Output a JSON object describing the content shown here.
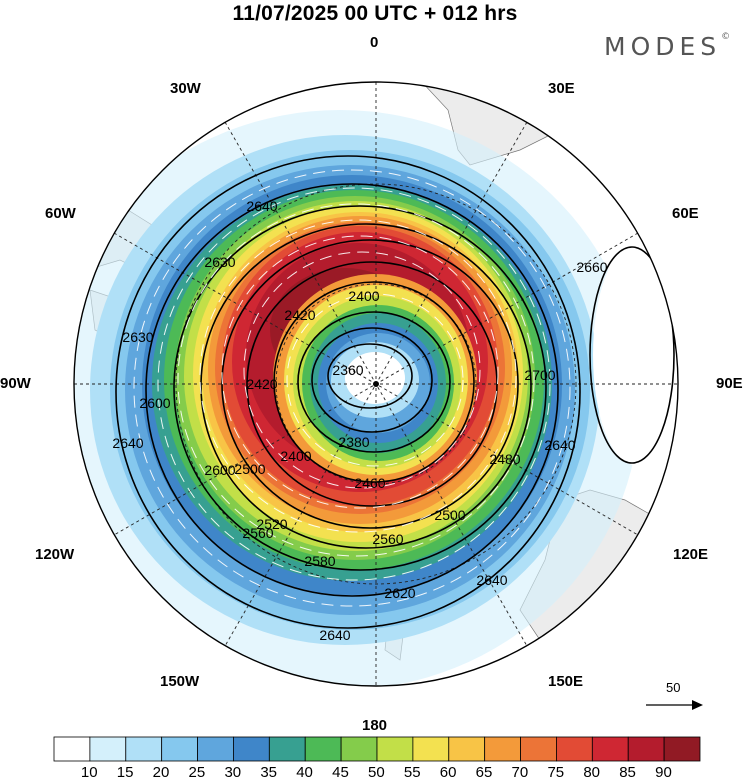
{
  "title": "11/07/2025  00 UTC  + 012 hrs",
  "brand": "MODES",
  "brand_mark": "©",
  "longitude_labels": {
    "n": "0",
    "e30": "30E",
    "e60": "60E",
    "e90": "90E",
    "e120": "120E",
    "e150": "150E",
    "s": "180",
    "w150": "150W",
    "w120": "120W",
    "w90": "90W",
    "w60": "60W",
    "w30": "30W"
  },
  "vector_reference": {
    "label": "50",
    "icon": "arrow-right-icon"
  },
  "contour_labels": [
    "2360",
    "2380",
    "2400",
    "2420",
    "2460",
    "2480",
    "2500",
    "2520",
    "2560",
    "2580",
    "2600",
    "2620",
    "2630",
    "2640",
    "2660",
    "2700"
  ],
  "colorbar": {
    "labels": [
      "10",
      "15",
      "20",
      "25",
      "30",
      "35",
      "40",
      "45",
      "50",
      "55",
      "60",
      "65",
      "70",
      "75",
      "80",
      "85",
      "90"
    ],
    "colors": [
      "#ffffff",
      "#d4f0fb",
      "#b0e0f7",
      "#85c8ee",
      "#5fa6dd",
      "#3f86c9",
      "#37a091",
      "#4dba56",
      "#84cc4b",
      "#c2df48",
      "#f3e150",
      "#f8c446",
      "#f39a3a",
      "#ec7437",
      "#e24b35",
      "#cf2733",
      "#b41c2d",
      "#911a24"
    ]
  }
}
